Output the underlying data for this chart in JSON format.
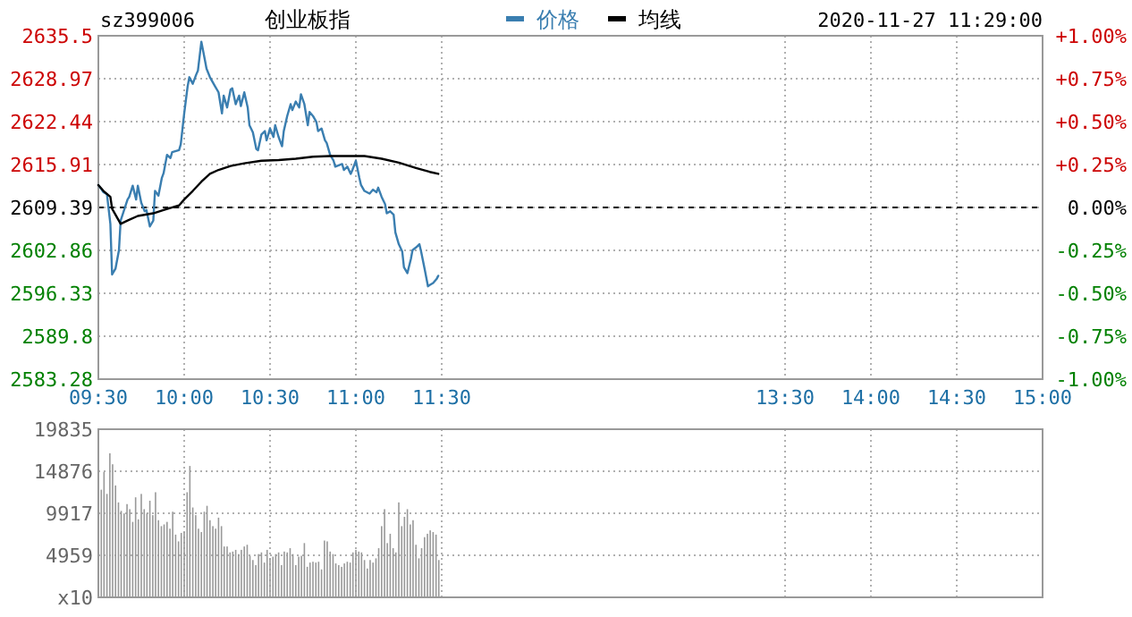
{
  "chart_data": [
    {
      "type": "line",
      "title": "创业板指",
      "subtitle": "sz399006",
      "annotations": [
        "2020-11-27 11:29:00"
      ],
      "xlim": [
        9.5,
        15
      ],
      "xticks": [
        {
          "value": 9.5,
          "label": "09:30"
        },
        {
          "value": 10,
          "label": "10:00"
        },
        {
          "value": 10.5,
          "label": "10:30"
        },
        {
          "value": 11,
          "label": "11:00"
        },
        {
          "value": 11.5,
          "label": "11:30"
        },
        {
          "value": 13.5,
          "label": "13:30"
        },
        {
          "value": 14,
          "label": "14:00"
        },
        {
          "value": 14.5,
          "label": "14:30"
        },
        {
          "value": 15,
          "label": "15:00"
        }
      ],
      "ylim": [
        2583.28,
        2635.5
      ],
      "yticks": [
        2583.28,
        2589.8,
        2596.33,
        2602.86,
        2609.39,
        2615.91,
        2622.44,
        2628.97,
        2635.5
      ],
      "y2lim": [
        -1,
        1
      ],
      "y2ticks": [
        {
          "value": -1,
          "label": "-1.00%"
        },
        {
          "value": -0.75,
          "label": "-0.75%"
        },
        {
          "value": -0.5,
          "label": "-0.50%"
        },
        {
          "value": -0.25,
          "label": "-0.25%"
        },
        {
          "value": 0,
          "label": "0.00%"
        },
        {
          "value": 0.25,
          "label": "+0.25%"
        },
        {
          "value": 0.5,
          "label": "+0.50%"
        },
        {
          "value": 0.75,
          "label": "+0.75%"
        },
        {
          "value": 1,
          "label": "+1.00%"
        }
      ],
      "ref_lines": [
        {
          "axis": "y",
          "value": 2609.39,
          "color": "#000000",
          "line_style": "dashed"
        }
      ],
      "grid": true,
      "legend": "top",
      "line_style": "solid",
      "series": [
        {
          "name": "价格",
          "color": "#3a7eb0",
          "x": [
            9.5,
            9.53,
            9.55,
            9.57,
            9.58,
            9.6,
            9.62,
            9.63,
            9.65,
            9.67,
            9.68,
            9.7,
            9.72,
            9.73,
            9.75,
            9.77,
            9.78,
            9.8,
            9.82,
            9.83,
            9.85,
            9.87,
            9.88,
            9.9,
            9.92,
            9.93,
            9.97,
            9.98,
            10,
            10.02,
            10.03,
            10.05,
            10.07,
            10.08,
            10.1,
            10.12,
            10.13,
            10.15,
            10.18,
            10.2,
            10.22,
            10.23,
            10.25,
            10.27,
            10.28,
            10.3,
            10.32,
            10.33,
            10.35,
            10.37,
            10.38,
            10.4,
            10.42,
            10.43,
            10.45,
            10.47,
            10.48,
            10.5,
            10.52,
            10.53,
            10.55,
            10.57,
            10.58,
            10.6,
            10.62,
            10.63,
            10.65,
            10.67,
            10.68,
            10.7,
            10.72,
            10.73,
            10.75,
            10.77,
            10.78,
            10.8,
            10.82,
            10.83,
            10.85,
            10.87,
            10.88,
            10.92,
            10.93,
            10.95,
            10.97,
            10.98,
            11,
            11.02,
            11.03,
            11.05,
            11.08,
            11.1,
            11.12,
            11.13,
            11.15,
            11.17,
            11.18,
            11.2,
            11.22,
            11.23,
            11.25,
            11.27,
            11.28,
            11.3,
            11.32,
            11.33,
            11.35,
            11.37,
            11.38,
            11.4,
            11.42,
            11.43,
            11.45,
            11.47,
            11.48
          ],
          "values": [
            2612.8,
            2611.7,
            2611.4,
            2606.9,
            2599.2,
            2600.1,
            2602.9,
            2607.4,
            2609.0,
            2610.6,
            2611.0,
            2612.7,
            2610.6,
            2612.7,
            2610.1,
            2608.8,
            2609.0,
            2606.5,
            2607.4,
            2611.9,
            2611.2,
            2613.9,
            2614.6,
            2617.4,
            2616.9,
            2617.8,
            2618.1,
            2619.0,
            2623.7,
            2627.8,
            2629.2,
            2628.2,
            2629.6,
            2630.2,
            2634.6,
            2631.9,
            2630.5,
            2629.2,
            2627.8,
            2626.9,
            2623.7,
            2626.4,
            2624.6,
            2627.3,
            2627.5,
            2625.1,
            2626.4,
            2624.8,
            2626.9,
            2624.6,
            2621.9,
            2620.8,
            2618.3,
            2618.1,
            2620.5,
            2621.0,
            2619.6,
            2621.4,
            2620.1,
            2621.9,
            2620.1,
            2618.7,
            2621.0,
            2623.3,
            2625.1,
            2624.2,
            2625.5,
            2624.6,
            2626.6,
            2625.1,
            2621.9,
            2623.9,
            2623.3,
            2622.4,
            2621.0,
            2621.4,
            2619.6,
            2619.2,
            2617.4,
            2616.5,
            2615.6,
            2616.0,
            2615.1,
            2615.6,
            2614.5,
            2615.1,
            2616.5,
            2613.9,
            2612.8,
            2611.9,
            2611.5,
            2612.1,
            2611.7,
            2612.4,
            2611.0,
            2609.9,
            2608.5,
            2608.8,
            2608.3,
            2605.6,
            2603.8,
            2602.7,
            2600.3,
            2599.4,
            2601.5,
            2602.9,
            2603.3,
            2603.8,
            2602.7,
            2600.1,
            2597.4,
            2597.6,
            2597.9,
            2598.5,
            2599.0
          ]
        },
        {
          "name": "均线",
          "color": "#000000",
          "x": [
            9.5,
            9.53,
            9.57,
            9.58,
            9.63,
            9.67,
            9.73,
            9.82,
            9.88,
            9.97,
            10,
            10.05,
            10.1,
            10.15,
            10.2,
            10.27,
            10.35,
            10.45,
            10.55,
            10.65,
            10.75,
            10.85,
            10.95,
            11.05,
            11.15,
            11.25,
            11.35,
            11.43,
            11.48
          ],
          "values": [
            2612.8,
            2611.9,
            2611.0,
            2609.2,
            2606.9,
            2607.4,
            2608.1,
            2608.5,
            2609.0,
            2609.7,
            2610.6,
            2611.9,
            2613.3,
            2614.5,
            2615.1,
            2615.7,
            2616.1,
            2616.5,
            2616.6,
            2616.8,
            2617.1,
            2617.2,
            2617.2,
            2617.2,
            2616.8,
            2616.2,
            2615.4,
            2614.8,
            2614.5
          ]
        }
      ]
    },
    {
      "type": "bar",
      "xlim": [
        9.5,
        15
      ],
      "xticks": [
        {
          "value": 9.5,
          "label": null
        },
        {
          "value": 10,
          "label": null
        },
        {
          "value": 10.5,
          "label": null
        },
        {
          "value": 11,
          "label": null
        },
        {
          "value": 11.5,
          "label": null
        },
        {
          "value": 13.5,
          "label": null
        },
        {
          "value": 14,
          "label": null
        },
        {
          "value": 14.5,
          "label": null
        },
        {
          "value": 15,
          "label": null
        }
      ],
      "ylim": [
        0,
        19835
      ],
      "yticks": [
        {
          "value": 0,
          "label": "x10"
        },
        4959,
        9917,
        14876,
        19835
      ],
      "tick_labels": "y",
      "grid": true,
      "series": [
        {
          "color": "#999999",
          "x": [
            9.5,
            9.517,
            9.533,
            9.55,
            9.567,
            9.583,
            9.6,
            9.617,
            9.633,
            9.65,
            9.667,
            9.683,
            9.7,
            9.717,
            9.733,
            9.75,
            9.767,
            9.783,
            9.8,
            9.817,
            9.833,
            9.85,
            9.867,
            9.883,
            9.9,
            9.917,
            9.933,
            9.95,
            9.967,
            9.983,
            10,
            10.017,
            10.033,
            10.05,
            10.067,
            10.083,
            10.1,
            10.117,
            10.133,
            10.15,
            10.167,
            10.183,
            10.2,
            10.217,
            10.233,
            10.25,
            10.267,
            10.283,
            10.3,
            10.317,
            10.333,
            10.35,
            10.367,
            10.383,
            10.4,
            10.417,
            10.433,
            10.45,
            10.467,
            10.483,
            10.5,
            10.517,
            10.533,
            10.55,
            10.567,
            10.583,
            10.6,
            10.617,
            10.633,
            10.65,
            10.667,
            10.683,
            10.7,
            10.717,
            10.733,
            10.75,
            10.767,
            10.783,
            10.8,
            10.817,
            10.833,
            10.85,
            10.867,
            10.883,
            10.9,
            10.917,
            10.933,
            10.95,
            10.967,
            10.983,
            11,
            11.017,
            11.033,
            11.05,
            11.067,
            11.083,
            11.1,
            11.117,
            11.133,
            11.15,
            11.167,
            11.183,
            11.2,
            11.217,
            11.233,
            11.25,
            11.267,
            11.283,
            11.3,
            11.317,
            11.333,
            11.35,
            11.367,
            11.383,
            11.4,
            11.417,
            11.433,
            11.45,
            11.467,
            11.483
          ],
          "values": [
            19800,
            12700,
            14800,
            12200,
            17000,
            15700,
            13200,
            11200,
            10200,
            9900,
            11000,
            10400,
            8900,
            11800,
            9200,
            12200,
            10400,
            9900,
            11400,
            9700,
            12400,
            9100,
            8400,
            8600,
            8900,
            8100,
            10100,
            7400,
            6600,
            7600,
            7700,
            12400,
            15500,
            10600,
            9700,
            8100,
            7700,
            10100,
            10800,
            9100,
            8400,
            8100,
            9400,
            8400,
            6000,
            6000,
            5300,
            5400,
            5600,
            5100,
            5600,
            6000,
            6200,
            4900,
            4400,
            3800,
            5100,
            5300,
            4100,
            5600,
            4600,
            4800,
            5100,
            5300,
            3800,
            5400,
            5300,
            5800,
            5100,
            3800,
            4800,
            4900,
            6400,
            3600,
            4100,
            4200,
            4100,
            4200,
            3300,
            6700,
            6600,
            5400,
            5100,
            4000,
            3800,
            3600,
            4000,
            4200,
            4100,
            5300,
            5600,
            5400,
            5300,
            4400,
            3400,
            4400,
            4100,
            4600,
            5800,
            8400,
            10400,
            6400,
            7500,
            5800,
            5300,
            11200,
            8400,
            9500,
            10400,
            8600,
            9100,
            6200,
            4600,
            5800,
            7100,
            7500,
            7900,
            7700,
            7400,
            4400
          ]
        }
      ]
    }
  ]
}
